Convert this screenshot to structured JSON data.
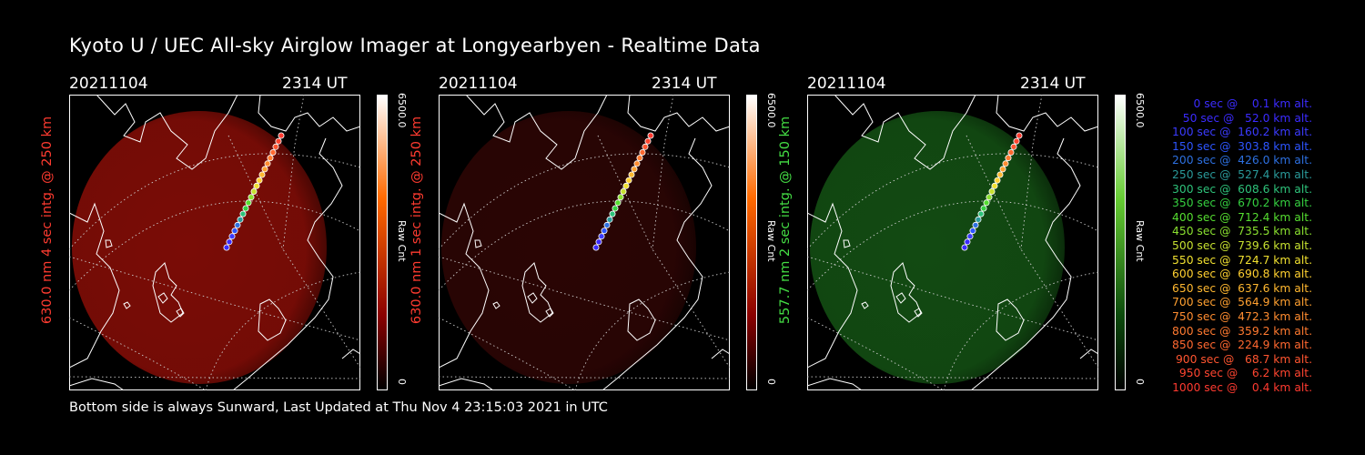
{
  "title": "Kyoto U / UEC All-sky Airglow Imager at Longyearbyen - Realtime Data",
  "footer": "Bottom side is always Sunward, Last Updated at Thu Nov  4 23:15:03 2021 in UTC",
  "panels": [
    {
      "date": "20211104",
      "time": "2314 UT",
      "vlabel": "630.0 nm 4 sec intg. @ 250 km",
      "label_color": "#ff3b30",
      "tint": "#7a0c06",
      "bar_top": "#ffffff",
      "bar_mid": "#ff6a00",
      "bar_low": "#8a0000",
      "cbar_max": "6500.0",
      "cbar_unit": "Raw Cnt",
      "cbar_min": "0"
    },
    {
      "date": "20211104",
      "time": "2314 UT",
      "vlabel": "630.0 nm 1 sec intg. @ 250 km",
      "label_color": "#ff3b30",
      "tint": "#2a0504",
      "bar_top": "#ffffff",
      "bar_mid": "#ff6a00",
      "bar_low": "#8a0000",
      "cbar_max": "6500.0",
      "cbar_unit": "Raw Cnt",
      "cbar_min": "0"
    },
    {
      "date": "20211104",
      "time": "2314 UT",
      "vlabel": "557.7 nm 2 sec intg. @ 150 km",
      "label_color": "#44dd44",
      "tint": "#124a12",
      "bar_top": "#ffffff",
      "bar_mid": "#66cc33",
      "bar_low": "#0c4a0c",
      "cbar_max": "6500.0",
      "cbar_unit": "Raw Cnt",
      "cbar_min": "0"
    }
  ],
  "legend": [
    {
      "text": "0 sec @    0.1 km alt.",
      "color": "#3b2bff"
    },
    {
      "text": "50 sec @   52.0 km alt.",
      "color": "#3b2bff"
    },
    {
      "text": "100 sec @  160.2 km alt.",
      "color": "#3b3bff"
    },
    {
      "text": "150 sec @  303.8 km alt.",
      "color": "#2d55ff"
    },
    {
      "text": "200 sec @  426.0 km alt.",
      "color": "#2d70e0"
    },
    {
      "text": "250 sec @  527.4 km alt.",
      "color": "#2a9a9a"
    },
    {
      "text": "300 sec @  608.6 km alt.",
      "color": "#2ec27a"
    },
    {
      "text": "350 sec @  670.2 km alt.",
      "color": "#35d040"
    },
    {
      "text": "400 sec @  712.4 km alt.",
      "color": "#55dd30"
    },
    {
      "text": "450 sec @  735.5 km alt.",
      "color": "#8ae030"
    },
    {
      "text": "500 sec @  739.6 km alt.",
      "color": "#c6e030"
    },
    {
      "text": "550 sec @  724.7 km alt.",
      "color": "#f0e030"
    },
    {
      "text": "600 sec @  690.8 km alt.",
      "color": "#ffd030"
    },
    {
      "text": "650 sec @  637.6 km alt.",
      "color": "#ffb830"
    },
    {
      "text": "700 sec @  564.9 km alt.",
      "color": "#ffa030"
    },
    {
      "text": "750 sec @  472.3 km alt.",
      "color": "#ff8c30"
    },
    {
      "text": "800 sec @  359.2 km alt.",
      "color": "#ff7a30"
    },
    {
      "text": "850 sec @  224.9 km alt.",
      "color": "#ff6830"
    },
    {
      "text": "900 sec @   68.7 km alt.",
      "color": "#ff5530"
    },
    {
      "text": "950 sec @    6.2 km alt.",
      "color": "#ff4530"
    },
    {
      "text": "1000 sec @    0.4 km alt.",
      "color": "#ff3a30"
    }
  ]
}
